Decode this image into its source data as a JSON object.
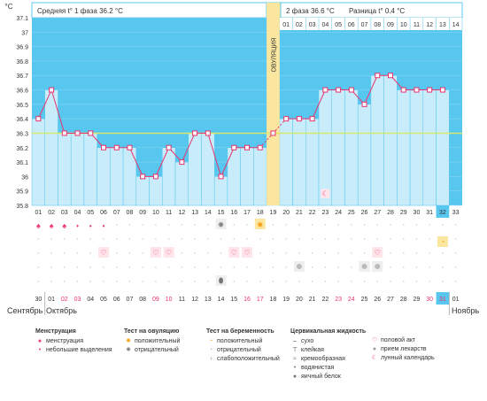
{
  "chart_data": {
    "type": "line",
    "unit_label": "°C",
    "header": {
      "phase1": "Средняя t° 1 фаза 36.2 °C",
      "phase2": "2 фаза 36.6 °C",
      "diff": "Разница t° 0.4 °C"
    },
    "ovulation_label": "ОВУЛЯЦИЯ",
    "ovulation_day": 19,
    "coverline": 36.3,
    "ylim": [
      35.8,
      37.1
    ],
    "y_ticks": [
      "37.1",
      "37",
      "36.9",
      "36.8",
      "36.7",
      "36.6",
      "36.5",
      "36.4",
      "36.3",
      "36.2",
      "36.1",
      "36",
      "35.9",
      "35.8"
    ],
    "days": [
      "01",
      "02",
      "03",
      "04",
      "05",
      "06",
      "07",
      "08",
      "09",
      "10",
      "11",
      "12",
      "13",
      "14",
      "15",
      "16",
      "17",
      "18",
      "19",
      "20",
      "21",
      "22",
      "23",
      "24",
      "25",
      "26",
      "27",
      "28",
      "29",
      "30",
      "31",
      "32",
      "33"
    ],
    "top_days": [
      "01",
      "02",
      "03",
      "04",
      "05",
      "06",
      "07",
      "08",
      "09",
      "10",
      "11",
      "12",
      "13",
      "14"
    ],
    "temps": [
      36.4,
      36.6,
      36.3,
      36.3,
      36.3,
      36.2,
      36.2,
      36.2,
      36.0,
      36.0,
      36.2,
      36.1,
      36.3,
      36.3,
      36.0,
      36.2,
      36.2,
      36.2,
      36.3,
      36.4,
      36.4,
      36.4,
      36.6,
      36.6,
      36.6,
      36.5,
      36.7,
      36.7,
      36.6,
      36.6,
      36.6,
      36.6,
      null
    ],
    "current_day": 32,
    "calendar_dates": [
      "30",
      "01",
      "02",
      "03",
      "04",
      "05",
      "06",
      "07",
      "08",
      "09",
      "10",
      "11",
      "12",
      "13",
      "14",
      "15",
      "16",
      "17",
      "18",
      "19",
      "20",
      "21",
      "22",
      "23",
      "24",
      "25",
      "26",
      "27",
      "28",
      "29",
      "30",
      "31",
      "01"
    ],
    "red_dates": [
      2,
      3,
      9,
      10,
      16,
      17,
      23,
      24,
      30,
      31
    ],
    "months": {
      "left": "Сентябрь",
      "mid": "Октябрь",
      "right": "Ноябрь"
    },
    "menstruation_days": {
      "1": "heavy",
      "2": "heavy",
      "3": "heavy",
      "4": "light",
      "5": "light",
      "6": "light"
    },
    "moon_day": 23,
    "ovulation_test_day": 18,
    "ovulation_test_negative_day": 15,
    "pregnancy_test_day": 32,
    "intercourse_days": [
      6,
      10,
      11,
      16,
      17,
      27
    ],
    "medication_days": [
      21,
      26,
      27
    ],
    "fluid_day": 15
  },
  "legend": {
    "menstruation": {
      "title": "Менструация",
      "items": [
        {
          "icon": "heavy-drop-icon",
          "label": "менструация"
        },
        {
          "icon": "light-drop-icon",
          "label": "небольшие выделения"
        }
      ]
    },
    "ovulation_test": {
      "title": "Тест на овуляцию",
      "items": [
        {
          "icon": "sun-positive-icon",
          "label": "положительный"
        },
        {
          "icon": "sun-negative-icon",
          "label": "отрицательный"
        }
      ]
    },
    "pregnancy_test": {
      "title": "Тест на беременность",
      "items": [
        {
          "icon": "pregnancy-positive-icon",
          "label": "положительный"
        },
        {
          "icon": "pregnancy-negative-icon",
          "label": "отрицательный"
        },
        {
          "icon": "pregnancy-weak-icon",
          "label": "слабоположительный"
        }
      ]
    },
    "cervical_fluid": {
      "title": "Цервикальная жидкость",
      "items": [
        {
          "icon": "dry-icon",
          "label": "сухо"
        },
        {
          "icon": "sticky-icon",
          "label": "клейкая"
        },
        {
          "icon": "creamy-icon",
          "label": "кремообразная"
        },
        {
          "icon": "watery-icon",
          "label": "водянистая"
        },
        {
          "icon": "eggwhite-icon",
          "label": "яичный белок"
        }
      ]
    },
    "other": {
      "items": [
        {
          "icon": "heart-icon",
          "label": "половой акт"
        },
        {
          "icon": "pill-icon",
          "label": "прием лекарств"
        },
        {
          "icon": "moon-icon",
          "label": "лунный календарь"
        }
      ]
    }
  },
  "colors": {
    "accent": "#58c7ef",
    "bar_fill": "#c9ecfb",
    "line": "#e8336b",
    "ovulation": "#fbe6a0",
    "coverline": "#d7e86a"
  }
}
